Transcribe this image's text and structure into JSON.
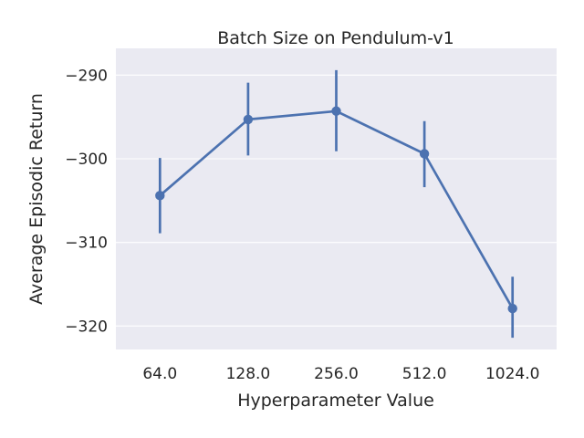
{
  "chart_data": {
    "type": "line",
    "title": "Batch Size on Pendulum-v1",
    "xlabel": "Hyperparameter Value",
    "ylabel": "Average Episodic Return",
    "categories": [
      "64.0",
      "128.0",
      "256.0",
      "512.0",
      "1024.0"
    ],
    "series": [
      {
        "values": [
          -304.4,
          -295.3,
          -294.3,
          -299.4,
          -317.9
        ],
        "lower": [
          -308.9,
          -299.6,
          -299.1,
          -303.4,
          -321.4
        ],
        "upper": [
          -299.9,
          -290.9,
          -289.4,
          -295.5,
          -314.1
        ]
      }
    ],
    "ylim": [
      -322.8,
      -286.8
    ],
    "yticks": [
      -290,
      -300,
      -310,
      -320
    ],
    "ytick_labels": [
      "−290",
      "−300",
      "−310",
      "−320"
    ],
    "grid": true,
    "colors": {
      "background": "#eaeaf2",
      "grid": "#ffffff",
      "line": "#4c72b0"
    }
  }
}
